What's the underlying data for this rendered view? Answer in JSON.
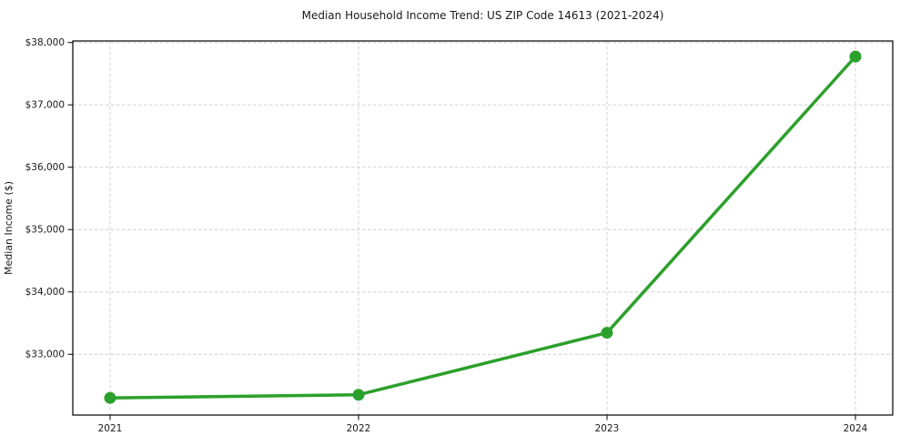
{
  "chart": {
    "title": "Median Household Income Trend: US ZIP Code 14613 (2021-2024)",
    "ylabel": "Median Income ($)"
  },
  "chart_data": {
    "type": "line",
    "title": "Median Household Income Trend: US ZIP Code 14613 (2021-2024)",
    "xlabel": "",
    "ylabel": "Median Income ($)",
    "categories": [
      "2021",
      "2022",
      "2023",
      "2024"
    ],
    "series": [
      {
        "name": "Median Household Income",
        "values": [
          32300,
          32350,
          33345,
          37775
        ]
      }
    ],
    "ylim": [
      32025,
      38025
    ],
    "yticks": [
      33000,
      34000,
      35000,
      36000,
      37000,
      38000
    ],
    "ytick_labels": [
      "$33,000",
      "$34,000",
      "$35,000",
      "$36,000",
      "$37,000",
      "$38,000"
    ],
    "grid": true,
    "grid_style": "dashed",
    "legend_position": "none",
    "colors": {
      "line": "#2ca02c",
      "marker": "#2ca02c",
      "grid": "#d0d0d0",
      "axis": "#000000",
      "text": "#1a1a1a",
      "background": "#ffffff"
    }
  }
}
